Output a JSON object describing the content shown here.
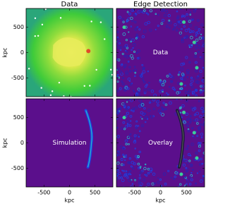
{
  "chart_data": [
    {
      "type": "image",
      "title": "Data",
      "ylabel": "kpc",
      "xlim": [
        -850,
        850
      ],
      "ylim": [
        -870,
        870
      ],
      "xticks": [
        -500,
        0,
        500
      ],
      "yticks": [
        500,
        0,
        -500
      ],
      "xtick_labels": false,
      "ytick_labels": true
    },
    {
      "type": "image",
      "title": "Edge Detection",
      "annotation": "Data",
      "xlim": [
        -850,
        850
      ],
      "ylim": [
        -870,
        870
      ],
      "xticks": [
        -500,
        0,
        500
      ],
      "yticks": [
        500,
        0,
        -500
      ],
      "xtick_labels": false,
      "ytick_labels": false
    },
    {
      "type": "image",
      "annotation": "Simulation",
      "xlabel": "kpc",
      "ylabel": "kpc",
      "xlim": [
        -850,
        850
      ],
      "ylim": [
        -870,
        870
      ],
      "xticks": [
        -500,
        0,
        500
      ],
      "yticks": [
        500,
        0,
        -500
      ],
      "xtick_labels": true,
      "ytick_labels": true
    },
    {
      "type": "image",
      "annotation": "Overlay",
      "xlabel": "kpc",
      "xlim": [
        -850,
        850
      ],
      "ylim": [
        -870,
        870
      ],
      "xticks": [
        -500,
        0,
        500
      ],
      "yticks": [
        500,
        0,
        -500
      ],
      "xtick_labels": true,
      "ytick_labels": false
    }
  ]
}
